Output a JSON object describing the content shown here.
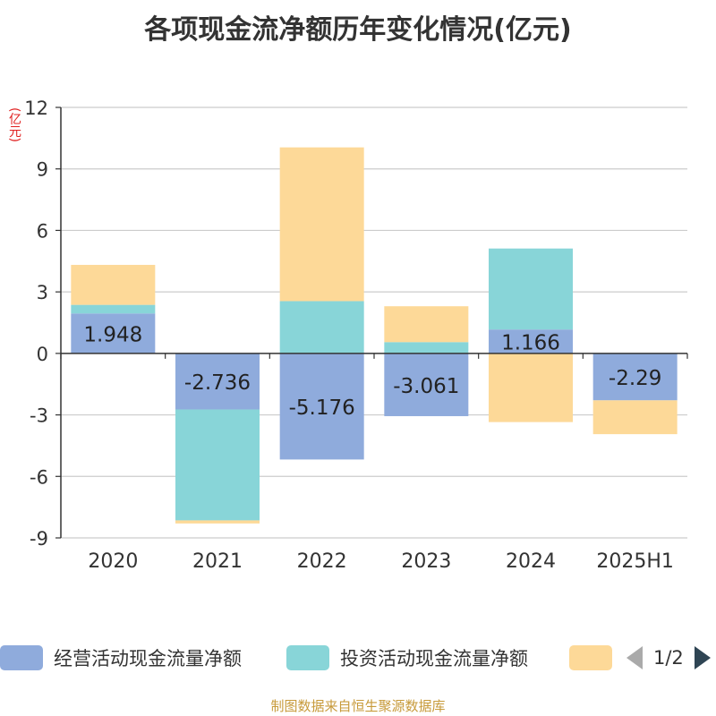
{
  "title": "各项现金流净额历年变化情况(亿元)",
  "unit_label": "(亿元)",
  "chart_data": {
    "type": "bar",
    "stacked": true,
    "title": "各项现金流净额历年变化情况(亿元)",
    "ylabel": "(亿元)",
    "categories": [
      "2020",
      "2021",
      "2022",
      "2023",
      "2024",
      "2025H1"
    ],
    "ylim": [
      -9,
      12
    ],
    "yticks": [
      12,
      9,
      6,
      3,
      0,
      -3,
      -6,
      -9
    ],
    "grid": true,
    "series": [
      {
        "name": "经营活动现金流量净额",
        "color": "#8fabdc",
        "values": [
          1.948,
          -2.736,
          -5.176,
          -3.061,
          1.166,
          -2.29
        ],
        "labels": [
          "1.948",
          "-2.736",
          "-5.176",
          "-3.061",
          "1.166",
          "-2.29"
        ]
      },
      {
        "name": "投资活动现金流量净额",
        "color": "#88d5d8",
        "values": [
          0.42,
          -5.41,
          2.55,
          0.55,
          3.95,
          0.0
        ]
      },
      {
        "name": "",
        "color": "#fdd998",
        "values": [
          1.95,
          -0.15,
          7.5,
          1.75,
          -3.35,
          -1.65
        ]
      }
    ]
  },
  "legend": {
    "items": [
      {
        "label": "经营活动现金流量净额",
        "color": "#8fabdc"
      },
      {
        "label": "投资活动现金流量净额",
        "color": "#88d5d8"
      },
      {
        "label": "",
        "color": "#fdd998"
      }
    ],
    "page_text": "1/2"
  },
  "footer": "制图数据来自恒生聚源数据库"
}
